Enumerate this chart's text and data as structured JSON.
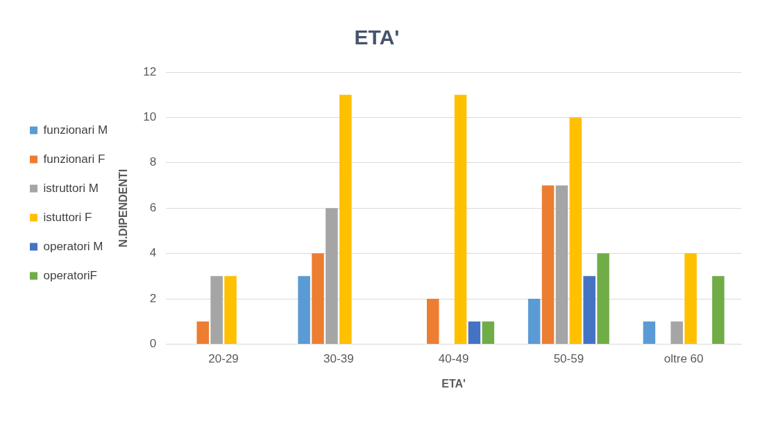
{
  "chart_data": {
    "type": "bar",
    "title": "ETA'",
    "xlabel": "ETA'",
    "ylabel": "N.DIPENDENTI",
    "categories": [
      "20-29",
      "30-39",
      "40-49",
      "50-59",
      "oltre 60"
    ],
    "series": [
      {
        "name": "funzionari M",
        "color": "#5b9bd5",
        "values": [
          0,
          3,
          0,
          2,
          1
        ]
      },
      {
        "name": "funzionari F",
        "color": "#ed7d31",
        "values": [
          1,
          4,
          2,
          7,
          0
        ]
      },
      {
        "name": "istruttori M",
        "color": "#a5a5a5",
        "values": [
          3,
          6,
          0,
          7,
          1
        ]
      },
      {
        "name": "istuttori F",
        "color": "#ffc000",
        "values": [
          3,
          11,
          11,
          10,
          4
        ]
      },
      {
        "name": "operatori M",
        "color": "#4472c4",
        "values": [
          0,
          0,
          1,
          3,
          0
        ]
      },
      {
        "name": "operatoriF",
        "color": "#70ad47",
        "values": [
          0,
          0,
          1,
          4,
          3
        ]
      }
    ],
    "ylim": [
      0,
      12
    ],
    "yticks": [
      0,
      2,
      4,
      6,
      8,
      10,
      12
    ],
    "grid": "y",
    "legend": "left"
  }
}
